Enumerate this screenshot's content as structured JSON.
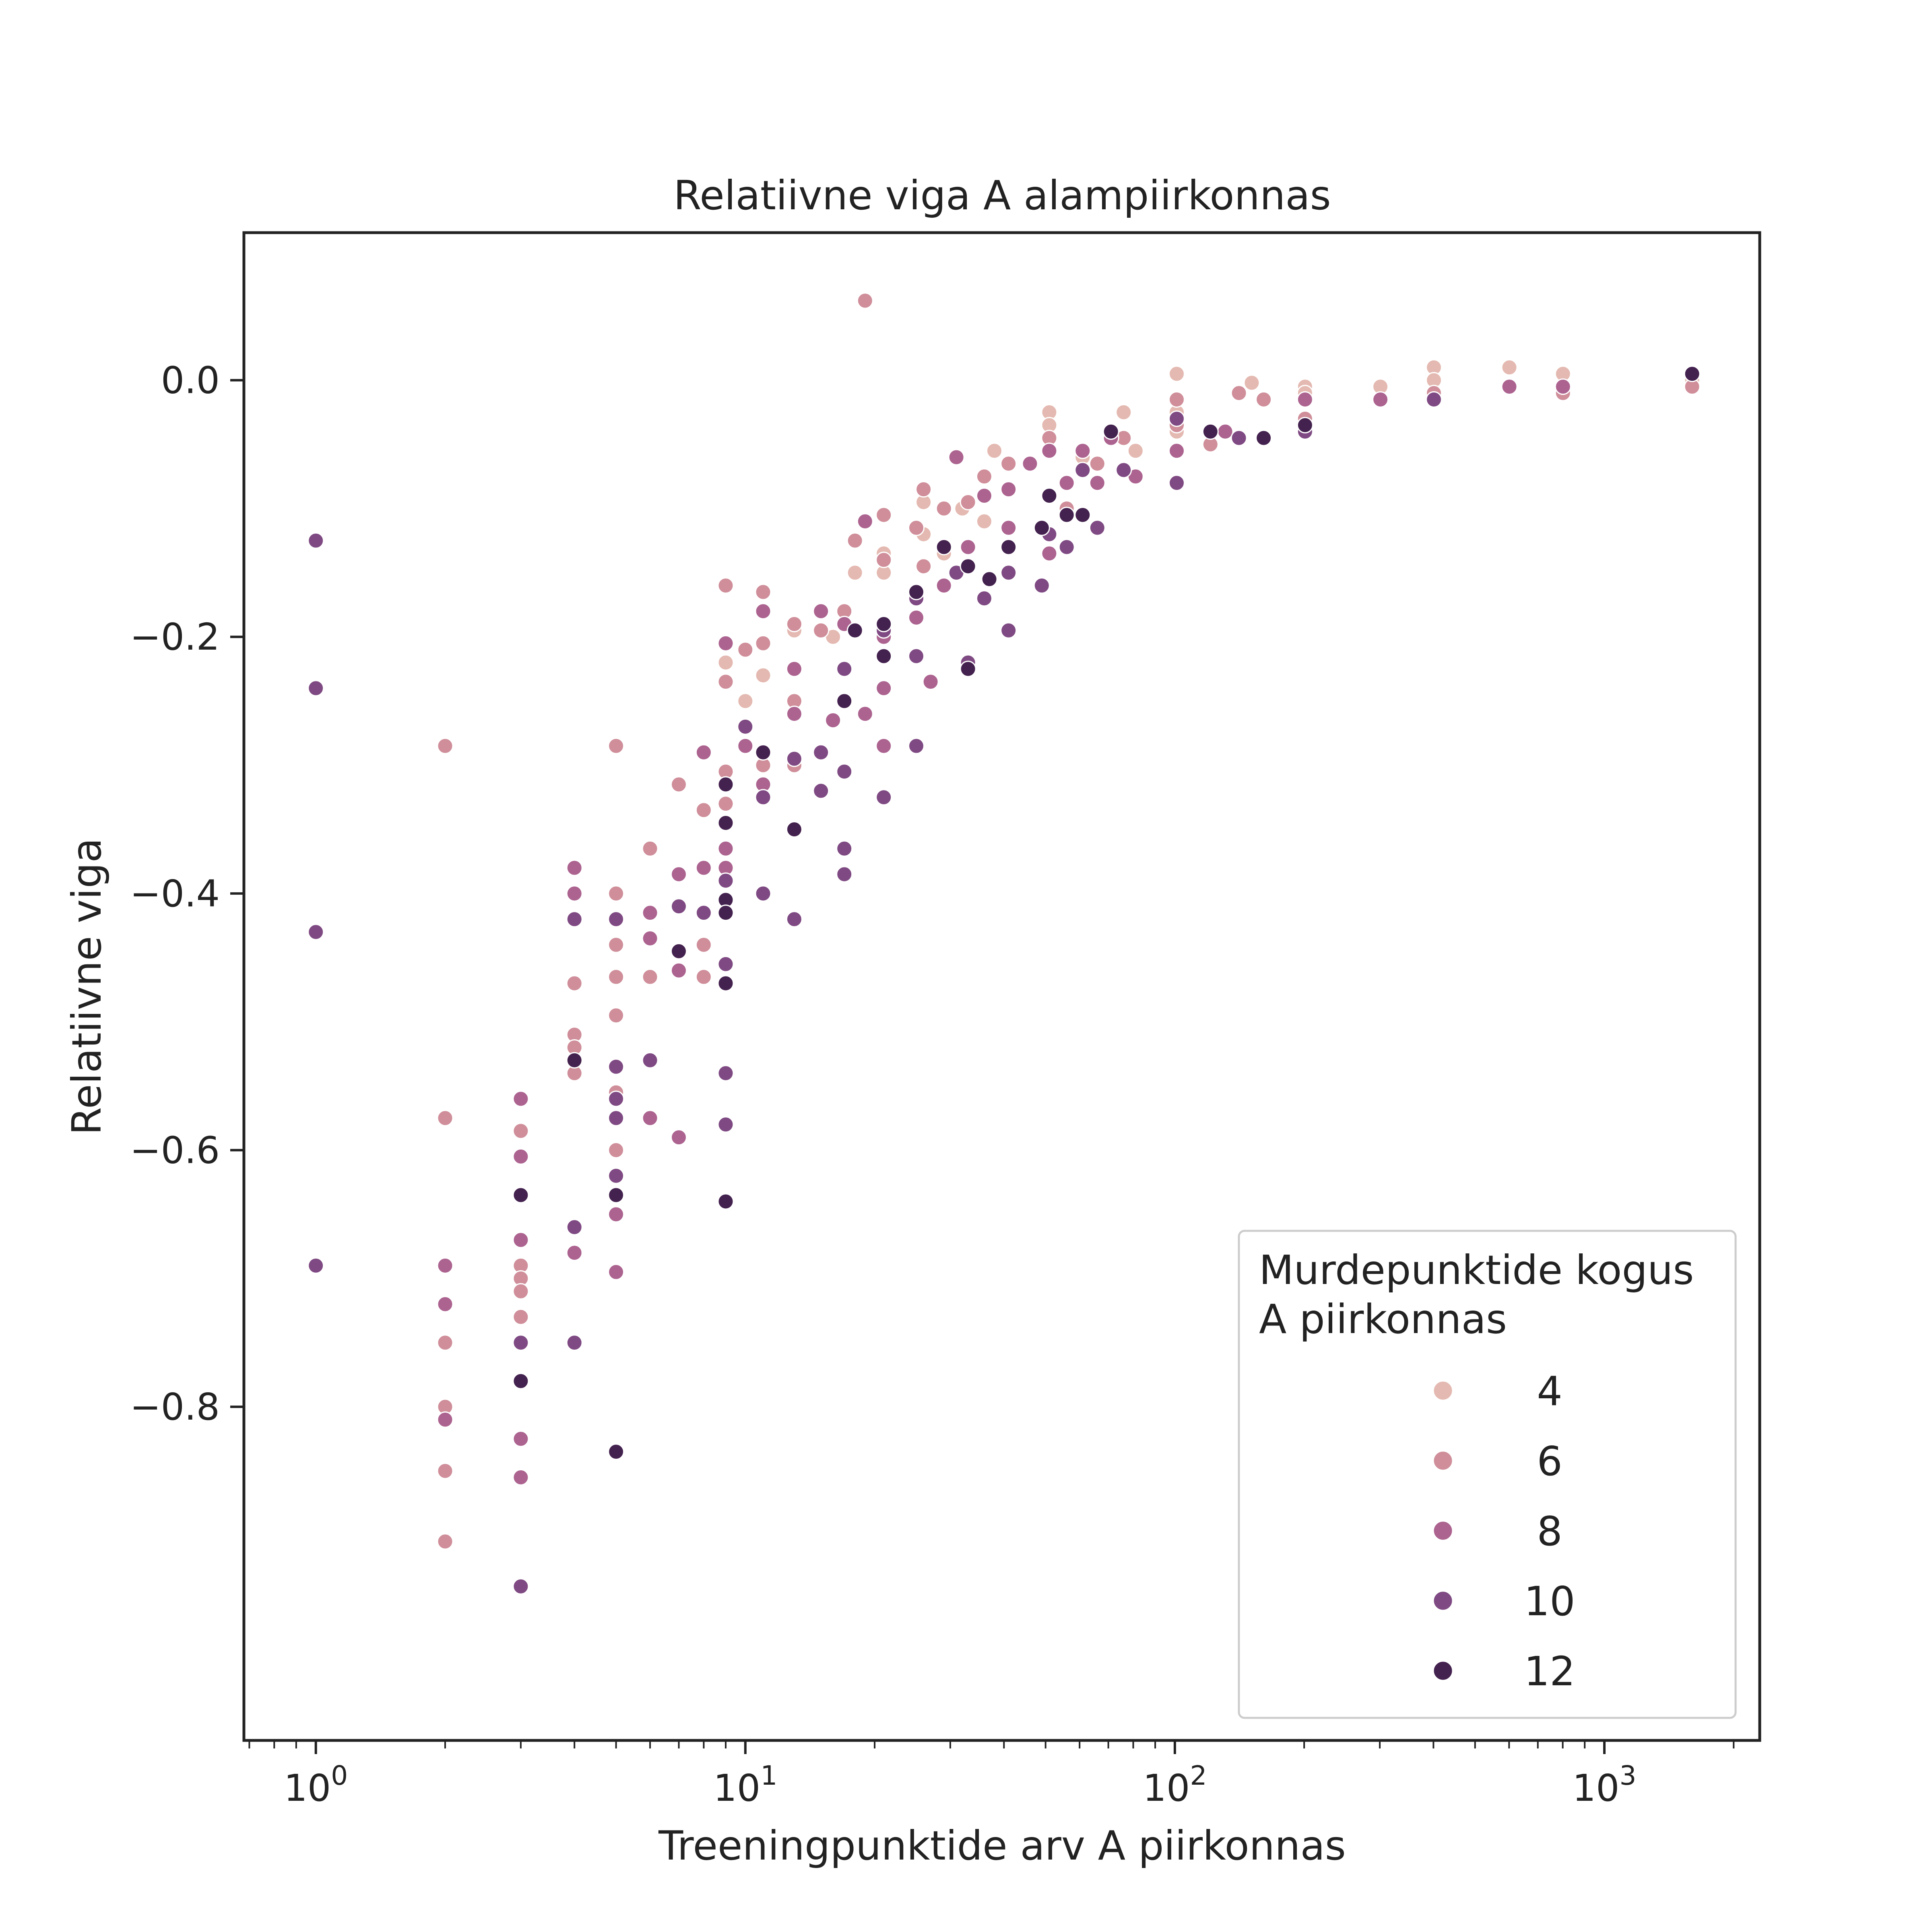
{
  "chart_data": {
    "type": "scatter",
    "title": "Relatiivne viga A alampiirkonnas",
    "xlabel": "Treeningpunktide arv A piirkonnas",
    "ylabel": "Relatiivne viga",
    "x_scale": "log",
    "xlim": [
      0.68,
      2300
    ],
    "ylim": [
      -1.06,
      0.115
    ],
    "x_ticks": [
      {
        "value": 1,
        "base": "10",
        "exp": "0"
      },
      {
        "value": 10,
        "base": "10",
        "exp": "1"
      },
      {
        "value": 100,
        "base": "10",
        "exp": "2"
      },
      {
        "value": 1000,
        "base": "10",
        "exp": "3"
      }
    ],
    "y_ticks": [
      {
        "value": 0.0,
        "label": "0.0"
      },
      {
        "value": -0.2,
        "label": "−0.2"
      },
      {
        "value": -0.4,
        "label": "−0.4"
      },
      {
        "value": -0.6,
        "label": "−0.6"
      },
      {
        "value": -0.8,
        "label": "−0.8"
      }
    ],
    "grid": false,
    "legend": {
      "title_lines": [
        "Murdepunktide kogus",
        "A piirkonnas"
      ],
      "placement": "lower-right",
      "items": [
        {
          "label": "4",
          "color": "#e4b9b1"
        },
        {
          "label": "6",
          "color": "#cf8e9a"
        },
        {
          "label": "8",
          "color": "#ac6390"
        },
        {
          "label": "10",
          "color": "#7f4a83"
        },
        {
          "label": "12",
          "color": "#44224f"
        }
      ]
    },
    "series": [
      {
        "hue": 4,
        "points": [
          [
            9,
            -0.22
          ],
          [
            10,
            -0.25
          ],
          [
            11,
            -0.23
          ],
          [
            13,
            -0.195
          ],
          [
            16,
            -0.2
          ],
          [
            18,
            -0.15
          ],
          [
            21,
            -0.15
          ],
          [
            21,
            -0.135
          ],
          [
            26,
            -0.095
          ],
          [
            26,
            -0.12
          ],
          [
            29,
            -0.135
          ],
          [
            32,
            -0.1
          ],
          [
            36,
            -0.11
          ],
          [
            38,
            -0.055
          ],
          [
            41,
            -0.085
          ],
          [
            51,
            -0.025
          ],
          [
            51,
            -0.035
          ],
          [
            61,
            -0.06
          ],
          [
            76,
            -0.025
          ],
          [
            81,
            -0.055
          ],
          [
            101,
            0.005
          ],
          [
            101,
            -0.025
          ],
          [
            101,
            -0.04
          ],
          [
            121,
            -0.04
          ],
          [
            151,
            -0.002
          ],
          [
            201,
            -0.005
          ],
          [
            201,
            -0.01
          ],
          [
            301,
            -0.005
          ],
          [
            401,
            0.01
          ],
          [
            401,
            0.0
          ],
          [
            601,
            0.01
          ],
          [
            801,
            0.005
          ],
          [
            1601,
            0.0
          ]
        ]
      },
      {
        "hue": 6,
        "points": [
          [
            2,
            -0.285
          ],
          [
            2,
            -0.575
          ],
          [
            2,
            -0.75
          ],
          [
            2,
            -0.8
          ],
          [
            2,
            -0.85
          ],
          [
            2,
            -0.905
          ],
          [
            3,
            -0.585
          ],
          [
            3,
            -0.69
          ],
          [
            3,
            -0.7
          ],
          [
            3,
            -0.71
          ],
          [
            3,
            -0.73
          ],
          [
            4,
            -0.47
          ],
          [
            4,
            -0.51
          ],
          [
            4,
            -0.52
          ],
          [
            4,
            -0.54
          ],
          [
            5,
            -0.285
          ],
          [
            5,
            -0.4
          ],
          [
            5,
            -0.44
          ],
          [
            5,
            -0.465
          ],
          [
            5,
            -0.495
          ],
          [
            5,
            -0.555
          ],
          [
            5,
            -0.6
          ],
          [
            6,
            -0.365
          ],
          [
            6,
            -0.465
          ],
          [
            7,
            -0.315
          ],
          [
            7,
            -0.41
          ],
          [
            8,
            -0.335
          ],
          [
            8,
            -0.44
          ],
          [
            8,
            -0.465
          ],
          [
            9,
            -0.16
          ],
          [
            9,
            -0.235
          ],
          [
            9,
            -0.305
          ],
          [
            9,
            -0.33
          ],
          [
            10,
            -0.21
          ],
          [
            11,
            -0.165
          ],
          [
            11,
            -0.205
          ],
          [
            11,
            -0.3
          ],
          [
            13,
            -0.19
          ],
          [
            13,
            -0.25
          ],
          [
            13,
            -0.3
          ],
          [
            15,
            -0.195
          ],
          [
            17,
            -0.18
          ],
          [
            17,
            -0.225
          ],
          [
            18,
            -0.125
          ],
          [
            19,
            0.062
          ],
          [
            21,
            -0.105
          ],
          [
            21,
            -0.14
          ],
          [
            25,
            -0.115
          ],
          [
            26,
            -0.085
          ],
          [
            26,
            -0.145
          ],
          [
            29,
            -0.1
          ],
          [
            33,
            -0.095
          ],
          [
            36,
            -0.075
          ],
          [
            41,
            -0.065
          ],
          [
            51,
            -0.045
          ],
          [
            56,
            -0.1
          ],
          [
            66,
            -0.065
          ],
          [
            76,
            -0.045
          ],
          [
            101,
            -0.015
          ],
          [
            101,
            -0.035
          ],
          [
            121,
            -0.05
          ],
          [
            141,
            -0.01
          ],
          [
            161,
            -0.015
          ],
          [
            201,
            -0.03
          ],
          [
            401,
            -0.01
          ],
          [
            801,
            -0.01
          ],
          [
            1601,
            -0.005
          ]
        ]
      },
      {
        "hue": 8,
        "points": [
          [
            2,
            -0.69
          ],
          [
            2,
            -0.72
          ],
          [
            2,
            -0.81
          ],
          [
            3,
            -0.56
          ],
          [
            3,
            -0.605
          ],
          [
            3,
            -0.67
          ],
          [
            3,
            -0.825
          ],
          [
            3,
            -0.855
          ],
          [
            4,
            -0.38
          ],
          [
            4,
            -0.4
          ],
          [
            4,
            -0.68
          ],
          [
            5,
            -0.65
          ],
          [
            5,
            -0.695
          ],
          [
            6,
            -0.415
          ],
          [
            6,
            -0.435
          ],
          [
            6,
            -0.575
          ],
          [
            7,
            -0.385
          ],
          [
            7,
            -0.46
          ],
          [
            7,
            -0.59
          ],
          [
            8,
            -0.29
          ],
          [
            8,
            -0.38
          ],
          [
            9,
            -0.205
          ],
          [
            9,
            -0.345
          ],
          [
            9,
            -0.365
          ],
          [
            9,
            -0.38
          ],
          [
            10,
            -0.285
          ],
          [
            11,
            -0.18
          ],
          [
            11,
            -0.315
          ],
          [
            13,
            -0.225
          ],
          [
            13,
            -0.26
          ],
          [
            15,
            -0.18
          ],
          [
            16,
            -0.265
          ],
          [
            17,
            -0.19
          ],
          [
            19,
            -0.11
          ],
          [
            19,
            -0.26
          ],
          [
            21,
            -0.2
          ],
          [
            21,
            -0.24
          ],
          [
            21,
            -0.285
          ],
          [
            25,
            -0.185
          ],
          [
            27,
            -0.235
          ],
          [
            29,
            -0.16
          ],
          [
            31,
            -0.06
          ],
          [
            33,
            -0.13
          ],
          [
            36,
            -0.09
          ],
          [
            41,
            -0.085
          ],
          [
            41,
            -0.115
          ],
          [
            46,
            -0.065
          ],
          [
            51,
            -0.055
          ],
          [
            51,
            -0.135
          ],
          [
            56,
            -0.08
          ],
          [
            61,
            -0.055
          ],
          [
            66,
            -0.08
          ],
          [
            71,
            -0.045
          ],
          [
            81,
            -0.075
          ],
          [
            101,
            -0.055
          ],
          [
            131,
            -0.04
          ],
          [
            161,
            -0.045
          ],
          [
            201,
            -0.015
          ],
          [
            301,
            -0.015
          ],
          [
            401,
            -0.015
          ],
          [
            601,
            -0.005
          ],
          [
            801,
            -0.005
          ]
        ]
      },
      {
        "hue": 10,
        "points": [
          [
            1,
            -0.125
          ],
          [
            1,
            -0.24
          ],
          [
            1,
            -0.43
          ],
          [
            1,
            -0.69
          ],
          [
            3,
            -0.75
          ],
          [
            3,
            -0.94
          ],
          [
            4,
            -0.42
          ],
          [
            4,
            -0.66
          ],
          [
            4,
            -0.75
          ],
          [
            5,
            -0.42
          ],
          [
            5,
            -0.535
          ],
          [
            5,
            -0.56
          ],
          [
            5,
            -0.575
          ],
          [
            5,
            -0.62
          ],
          [
            6,
            -0.53
          ],
          [
            7,
            -0.41
          ],
          [
            8,
            -0.415
          ],
          [
            9,
            -0.39
          ],
          [
            9,
            -0.455
          ],
          [
            9,
            -0.54
          ],
          [
            9,
            -0.58
          ],
          [
            10,
            -0.27
          ],
          [
            11,
            -0.325
          ],
          [
            11,
            -0.4
          ],
          [
            13,
            -0.295
          ],
          [
            13,
            -0.42
          ],
          [
            15,
            -0.29
          ],
          [
            15,
            -0.32
          ],
          [
            17,
            -0.225
          ],
          [
            17,
            -0.305
          ],
          [
            17,
            -0.365
          ],
          [
            17,
            -0.385
          ],
          [
            21,
            -0.195
          ],
          [
            21,
            -0.325
          ],
          [
            25,
            -0.17
          ],
          [
            25,
            -0.215
          ],
          [
            25,
            -0.285
          ],
          [
            31,
            -0.15
          ],
          [
            33,
            -0.22
          ],
          [
            36,
            -0.17
          ],
          [
            41,
            -0.15
          ],
          [
            41,
            -0.195
          ],
          [
            49,
            -0.16
          ],
          [
            51,
            -0.12
          ],
          [
            56,
            -0.13
          ],
          [
            61,
            -0.07
          ],
          [
            66,
            -0.115
          ],
          [
            76,
            -0.07
          ],
          [
            101,
            -0.03
          ],
          [
            101,
            -0.08
          ],
          [
            141,
            -0.045
          ],
          [
            201,
            -0.04
          ],
          [
            401,
            -0.015
          ]
        ]
      },
      {
        "hue": 12,
        "points": [
          [
            3,
            -0.635
          ],
          [
            3,
            -0.78
          ],
          [
            4,
            -0.53
          ],
          [
            5,
            -0.635
          ],
          [
            5,
            -0.835
          ],
          [
            7,
            -0.445
          ],
          [
            9,
            -0.315
          ],
          [
            9,
            -0.345
          ],
          [
            9,
            -0.405
          ],
          [
            9,
            -0.415
          ],
          [
            9,
            -0.47
          ],
          [
            9,
            -0.64
          ],
          [
            11,
            -0.29
          ],
          [
            13,
            -0.35
          ],
          [
            17,
            -0.25
          ],
          [
            18,
            -0.195
          ],
          [
            21,
            -0.19
          ],
          [
            21,
            -0.215
          ],
          [
            25,
            -0.165
          ],
          [
            29,
            -0.13
          ],
          [
            33,
            -0.145
          ],
          [
            33,
            -0.225
          ],
          [
            37,
            -0.155
          ],
          [
            41,
            -0.13
          ],
          [
            49,
            -0.115
          ],
          [
            51,
            -0.09
          ],
          [
            56,
            -0.105
          ],
          [
            61,
            -0.105
          ],
          [
            71,
            -0.04
          ],
          [
            121,
            -0.04
          ],
          [
            161,
            -0.045
          ],
          [
            201,
            -0.035
          ],
          [
            1601,
            0.005
          ]
        ]
      }
    ]
  }
}
